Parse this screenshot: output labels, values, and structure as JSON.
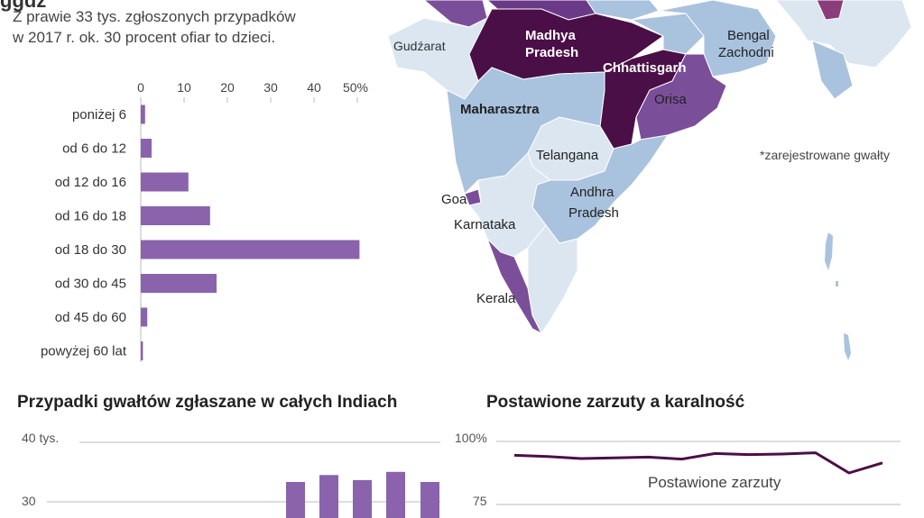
{
  "header": {
    "subtitle_line1": "Z prawie 33  tys. zgłoszonych przypadków",
    "subtitle_line2": "w 2017 r. ok. 30 procent ofiar to dzieci."
  },
  "colors": {
    "bar": "#8a63ac",
    "dark_purple": "#4b0f47",
    "mid_purple": "#7b4e9a",
    "light_blue": "#a9c2de",
    "pale_blue": "#dbe6f1",
    "line": "#4b0f47",
    "axis": "#bbbbbb"
  },
  "age_chart": {
    "tick_labels": [
      "0",
      "10",
      "20",
      "30",
      "40",
      "50%"
    ]
  },
  "map": {
    "labels": {
      "gudzarat": "Gudźarat",
      "madhya_1": "Madhya",
      "madhya_2": "Pradesh",
      "chhattisgarh": "Chhattisgarh",
      "bengal_1": "Bengal",
      "bengal_2": "Zachodni",
      "orisa": "Orisa",
      "maharasztra": "Maharasztra",
      "telangana": "Telangana",
      "goa": "Goa",
      "andhra_1": "Andhra",
      "andhra_2": "Pradesh",
      "karnataka": "Karnataka",
      "kerala": "Kerala"
    },
    "note": "*zarejestrowane gwałty"
  },
  "cases_chart": {
    "title": "Przypadki gwałtów zgłaszane w całych Indiach",
    "tick_labels": [
      "40  tys.",
      "30"
    ]
  },
  "charges_chart": {
    "title": "Postawione zarzuty a karalność",
    "tick_labels": [
      "100%",
      "75"
    ],
    "series_label": "Postawione zarzuty"
  },
  "chart_data": [
    {
      "type": "bar",
      "orientation": "horizontal",
      "categories": [
        "poniżej 6",
        "od 6 do 12",
        "od 12 do 16",
        "od 16 do 18",
        "od 18 do 30",
        "od 30 do 45",
        "od 45 do 60",
        "powyżej 60 lat"
      ],
      "values": [
        1,
        2.5,
        11,
        16,
        50.5,
        17.5,
        1.5,
        0.5
      ],
      "xlim": [
        0,
        50
      ],
      "xticks": [
        "0",
        "10",
        "20",
        "30",
        "40",
        "50%"
      ]
    },
    {
      "type": "bar",
      "title": "Przypadki gwałtów zgłaszane w całych Indiach",
      "values": [
        33.0,
        34.1,
        33.3,
        34.6,
        33.0
      ],
      "ylim": [
        25,
        40
      ],
      "yticks": [
        "40  tys.",
        "30"
      ]
    },
    {
      "type": "line",
      "title": "Postawione zarzuty a karalność",
      "series": [
        {
          "name": "Postawione zarzuty",
          "values": [
            94.5,
            94,
            93.2,
            93.5,
            93.8,
            93,
            95.2,
            94.8,
            95,
            95.5,
            87.5,
            91.5
          ]
        }
      ],
      "ylim": [
        75,
        100
      ],
      "yticks": [
        "100%",
        "75"
      ]
    }
  ]
}
